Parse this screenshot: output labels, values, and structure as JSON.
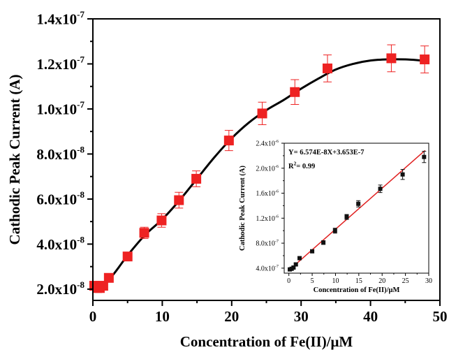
{
  "chart_data": [
    {
      "type": "scatter",
      "title": "",
      "xlabel": "Concentration of Fe(II)/μM",
      "ylabel": "Cathodic Peak Current (A)",
      "xlim": [
        0,
        50
      ],
      "ylim": [
        1.5e-08,
        1.4e-07
      ],
      "x_ticks": [
        0,
        10,
        20,
        30,
        40,
        50
      ],
      "x_tick_labels": [
        "0",
        "10",
        "20",
        "30",
        "40",
        "50"
      ],
      "y_ticks": [
        2e-08,
        4e-08,
        6e-08,
        8e-08,
        1e-07,
        1.2e-07,
        1.4e-07
      ],
      "y_tick_labels": [
        {
          "mantissa": "2.0x10",
          "exp": "-8"
        },
        {
          "mantissa": "4.0x10",
          "exp": "-8"
        },
        {
          "mantissa": "6.0x10",
          "exp": "-8"
        },
        {
          "mantissa": "8.0x10",
          "exp": "-8"
        },
        {
          "mantissa": "1.0x10",
          "exp": "-7"
        },
        {
          "mantissa": "1.2x10",
          "exp": "-7"
        },
        {
          "mantissa": "1.4x10",
          "exp": "-7"
        }
      ],
      "series": [
        {
          "marker": "square",
          "color": "#ee2222",
          "x": [
            0.2,
            0.6,
            1.0,
            1.5,
            2.3,
            5.0,
            7.4,
            9.9,
            12.4,
            14.9,
            19.6,
            24.4,
            29.1,
            33.8,
            43.0,
            47.8
          ],
          "y": [
            2.15e-08,
            2.05e-08,
            2.05e-08,
            2.15e-08,
            2.5e-08,
            3.45e-08,
            4.5e-08,
            5.05e-08,
            5.95e-08,
            6.9e-08,
            8.6e-08,
            9.8e-08,
            1.075e-07,
            1.18e-07,
            1.225e-07,
            1.22e-07
          ],
          "err": [
            1e-09,
            1e-09,
            1e-09,
            1e-09,
            1e-09,
            1.5e-09,
            2.5e-09,
            3e-09,
            3.5e-09,
            3.5e-09,
            4.5e-09,
            5e-09,
            5.5e-09,
            6e-09,
            6e-09,
            6e-09
          ]
        }
      ],
      "fit_line": {
        "color": "#000000",
        "x": [
          0,
          2.5,
          5,
          7.5,
          10,
          12.5,
          15,
          17.5,
          20,
          22.5,
          25,
          27.5,
          30,
          32.5,
          35,
          37.5,
          40,
          42.5,
          45,
          47.5,
          48
        ],
        "y": [
          2e-08,
          2.5e-08,
          3.5e-08,
          4.4e-08,
          5.1e-08,
          5.95e-08,
          6.9e-08,
          7.85e-08,
          8.7e-08,
          9.4e-08,
          9.95e-08,
          1.04e-07,
          1.09e-07,
          1.135e-07,
          1.175e-07,
          1.2e-07,
          1.215e-07,
          1.22e-07,
          1.22e-07,
          1.215e-07,
          1.215e-07
        ]
      }
    },
    {
      "type": "scatter",
      "title": "",
      "xlabel": "Concentration of Fe(II)/μM",
      "ylabel": "Cathodic Peak Current (A)",
      "xlim": [
        -1,
        30
      ],
      "ylim": [
        3.2e-07,
        2.4e-06
      ],
      "x_ticks": [
        0,
        5,
        10,
        15,
        20,
        25,
        30
      ],
      "x_tick_labels": [
        "0",
        "5",
        "10",
        "15",
        "20",
        "25",
        "30"
      ],
      "y_ticks": [
        4e-07,
        8e-07,
        1.2e-06,
        1.6e-06,
        2e-06,
        2.4e-06
      ],
      "y_tick_labels": [
        {
          "mantissa": "4.0x10",
          "exp": "-7"
        },
        {
          "mantissa": "8.0x10",
          "exp": "-7"
        },
        {
          "mantissa": "1.2x10",
          "exp": "-6"
        },
        {
          "mantissa": "1.6x10",
          "exp": "-6"
        },
        {
          "mantissa": "2.0x10",
          "exp": "-6"
        },
        {
          "mantissa": "2.4x10",
          "exp": "-6"
        }
      ],
      "annotations": [
        {
          "text": "Y= 6.574E-8X+3.653E-7"
        },
        {
          "text": "R",
          "sup": "2",
          "suffix": "= 0.99"
        }
      ],
      "series": [
        {
          "marker": "square",
          "color": "#111111",
          "x": [
            0.2,
            0.6,
            1.0,
            1.5,
            2.3,
            5.0,
            7.4,
            9.9,
            12.4,
            14.9,
            19.6,
            24.4,
            29.0
          ],
          "y": [
            3.8e-07,
            3.9e-07,
            4.1e-07,
            4.6e-07,
            5.6e-07,
            6.7e-07,
            8.1e-07,
            1e-06,
            1.22e-06,
            1.43e-06,
            1.67e-06,
            1.9e-06,
            2.18e-06
          ],
          "err": [
            1.5e-08,
            1.5e-08,
            2e-08,
            2e-08,
            2e-08,
            2.5e-08,
            3e-08,
            4e-08,
            4e-08,
            5e-08,
            6e-08,
            8e-08,
            9e-08
          ]
        }
      ],
      "fit_line": {
        "color": "#e02020",
        "slope": 6.574e-08,
        "intercept": 3.653e-07,
        "x_range": [
          0,
          29.2
        ]
      }
    }
  ]
}
